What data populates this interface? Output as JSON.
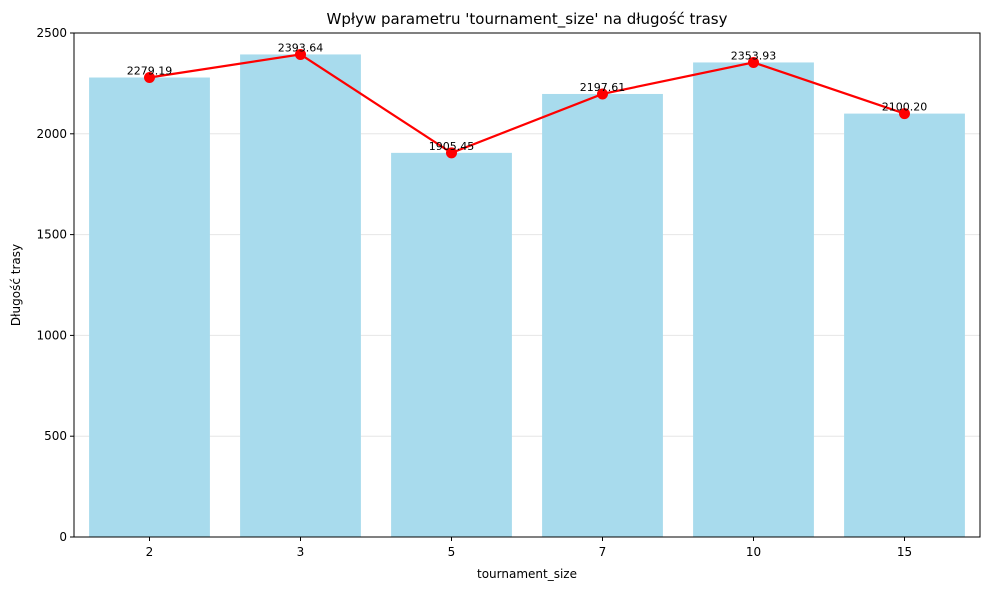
{
  "chart_data": {
    "type": "bar",
    "title": "Wpływ parametru 'tournament_size' na długość trasy",
    "xlabel": "tournament_size",
    "ylabel": "Długość trasy",
    "categories": [
      "2",
      "3",
      "5",
      "7",
      "10",
      "15"
    ],
    "values": [
      2279.19,
      2393.64,
      1905.45,
      2197.61,
      2353.93,
      2100.2
    ],
    "value_labels": [
      "2279.19",
      "2393.64",
      "1905.45",
      "2197.61",
      "2353.93",
      "2100.20"
    ],
    "overlay_line": {
      "type": "line",
      "values": [
        2279.19,
        2393.64,
        1905.45,
        2197.61,
        2353.93,
        2100.2
      ]
    },
    "ylim": [
      0,
      2500
    ],
    "yticks": [
      0,
      500,
      1000,
      1500,
      2000,
      2500
    ],
    "ytick_labels": [
      "0",
      "500",
      "1000",
      "1500",
      "2000",
      "2500"
    ],
    "grid": "y",
    "colors": {
      "bar": "#a8dbed",
      "line": "#ff0000",
      "marker": "#ff0000",
      "grid": "#e6e6e6"
    }
  }
}
